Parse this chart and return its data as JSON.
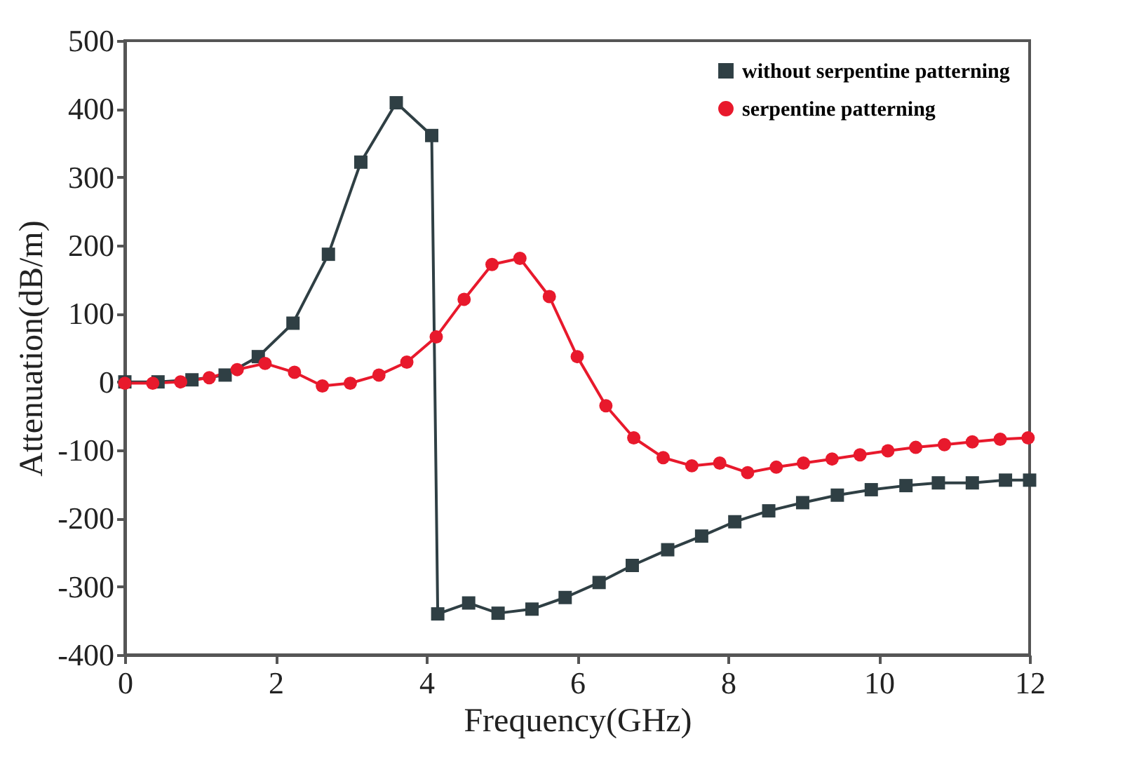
{
  "chart_data": {
    "type": "line",
    "xlabel": "Frequency(GHz)",
    "ylabel": "Attenuation(dB/m)",
    "xlim": [
      0,
      12
    ],
    "xticks": [
      0,
      2,
      4,
      6,
      8,
      10,
      12
    ],
    "ylim": [
      -400,
      500
    ],
    "yticks": [
      -400,
      -300,
      -200,
      -100,
      0,
      100,
      200,
      300,
      400,
      500
    ],
    "grid": false,
    "legend": "top right",
    "series": [
      {
        "name": "without serpentine patterning",
        "color": "#2f3f44",
        "marker": "square",
        "x": [
          0,
          0.44,
          0.89,
          1.33,
          1.77,
          2.23,
          2.7,
          3.13,
          3.6,
          4.07,
          4.15,
          4.56,
          4.95,
          5.4,
          5.84,
          6.29,
          6.73,
          7.2,
          7.65,
          8.09,
          8.54,
          8.99,
          9.45,
          9.9,
          10.36,
          10.79,
          11.24,
          11.68,
          12
        ],
        "values": [
          0,
          0,
          3,
          10,
          37,
          86,
          187,
          322,
          409,
          361,
          -340,
          -324,
          -339,
          -333,
          -316,
          -294,
          -269,
          -246,
          -226,
          -205,
          -189,
          -177,
          -166,
          -158,
          -152,
          -148,
          -148,
          -144,
          -144
        ]
      },
      {
        "name": " serpentine patterning",
        "color": "#e8192c",
        "marker": "circle",
        "x": [
          0,
          0.37,
          0.74,
          1.12,
          1.49,
          1.86,
          2.25,
          2.62,
          2.99,
          3.37,
          3.74,
          4.13,
          4.5,
          4.87,
          5.24,
          5.63,
          6.0,
          6.38,
          6.75,
          7.14,
          7.52,
          7.89,
          8.26,
          8.64,
          9.0,
          9.38,
          9.75,
          10.12,
          10.49,
          10.87,
          11.24,
          11.61,
          11.98
        ],
        "values": [
          -2,
          -2,
          0,
          6,
          18,
          27,
          14,
          -6,
          -2,
          10,
          29,
          66,
          121,
          172,
          181,
          125,
          37,
          -35,
          -82,
          -111,
          -123,
          -119,
          -133,
          -125,
          -119,
          -113,
          -107,
          -101,
          -96,
          -92,
          -88,
          -84,
          -82
        ]
      }
    ]
  }
}
